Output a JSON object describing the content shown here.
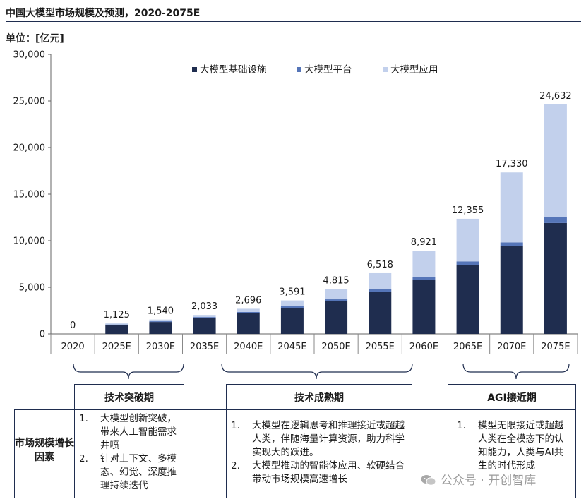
{
  "header": {
    "title": "中国大模型市场规模及预测，2020-2075E",
    "unit": "单位：[亿元]"
  },
  "chart_data": {
    "type": "bar",
    "stacked": true,
    "categories": [
      "2020",
      "2025E",
      "2030E",
      "2035E",
      "2040E",
      "2045E",
      "2050E",
      "2055E",
      "2060E",
      "2065E",
      "2070E",
      "2075E"
    ],
    "series": [
      {
        "name": "大模型基础设施",
        "color": "#1f2d4f",
        "values": [
          0,
          950,
          1280,
          1700,
          2200,
          2800,
          3500,
          4500,
          5800,
          7400,
          9400,
          11900
        ]
      },
      {
        "name": "大模型平台",
        "color": "#5575b8",
        "values": [
          0,
          60,
          80,
          110,
          150,
          190,
          210,
          280,
          320,
          380,
          420,
          600
        ]
      },
      {
        "name": "大模型应用",
        "color": "#c2d0ec",
        "values": [
          0,
          115,
          180,
          223,
          346,
          601,
          1105,
          1738,
          2801,
          4575,
          7510,
          12132
        ]
      }
    ],
    "totals": [
      "0",
      "1,125",
      "1,540",
      "2,033",
      "2,696",
      "3,591",
      "4,815",
      "6,518",
      "8,921",
      "12,355",
      "17,330",
      "24,632"
    ],
    "totals_values": [
      0,
      1125,
      1540,
      2033,
      2696,
      3591,
      4815,
      6518,
      8921,
      12355,
      17330,
      24632
    ],
    "ylim": [
      0,
      30000
    ],
    "yticks": [
      "0",
      "5,000",
      "10,000",
      "15,000",
      "20,000",
      "25,000",
      "30,000"
    ],
    "ytick_values": [
      0,
      5000,
      10000,
      15000,
      20000,
      25000,
      30000
    ],
    "legend_position": "top"
  },
  "phases": [
    {
      "title": "技术突破期",
      "items": [
        {
          "num": "1.",
          "text": "大模型创新突破，带来人工智能需求井喷"
        },
        {
          "num": "2.",
          "text": "针对上下文、多模态、幻觉、深度推理持续迭代"
        }
      ]
    },
    {
      "title": "技术成熟期",
      "items": [
        {
          "num": "1.",
          "text": "大模型在逻辑思考和推理接近或超越人类，伴随海量计算资源，助力科学实现大的跃进。"
        },
        {
          "num": "2.",
          "text": "大模型推动的智能体应用、软硬结合带动市场规模高速增长"
        }
      ]
    },
    {
      "title": "AGI接近期",
      "items": [
        {
          "num": "1.",
          "text": "模型无限接近或超越人类在全模态下的认知能力，人类与AI共生的时代形成"
        }
      ]
    }
  ],
  "factor_label": "市场规模增长因素",
  "watermark": "公众号 · 开创智库"
}
